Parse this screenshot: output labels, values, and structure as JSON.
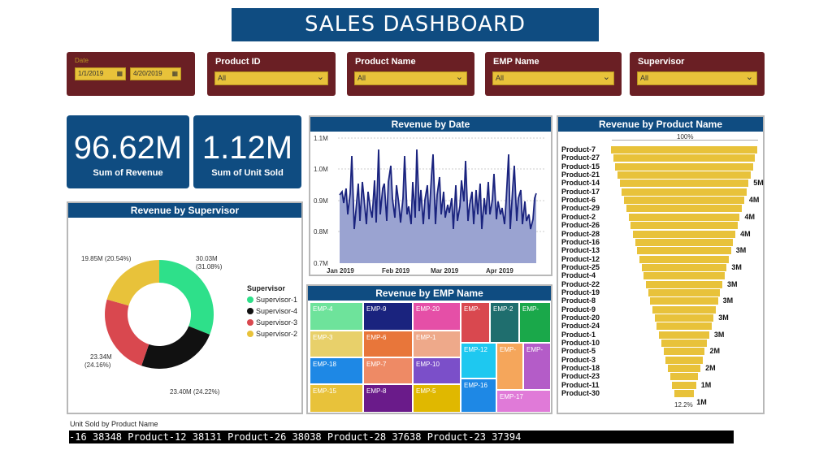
{
  "title": "SALES DASHBOARD",
  "filters": {
    "date": {
      "label": "Date",
      "start": "1/1/2019",
      "end": "4/20/2019"
    },
    "product_id": {
      "label": "Product ID",
      "value": "All"
    },
    "product_name": {
      "label": "Product Name",
      "value": "All"
    },
    "emp_name": {
      "label": "EMP Name",
      "value": "All"
    },
    "supervisor": {
      "label": "Supervisor",
      "value": "All"
    }
  },
  "kpis": {
    "revenue": {
      "value": "96.62M",
      "caption": "Sum of Revenue"
    },
    "units": {
      "value": "1.12M",
      "caption": "Sum of Unit Sold"
    }
  },
  "revenue_by_date": {
    "title": "Revenue by Date",
    "yticks": [
      "1.1M",
      "1.0M",
      "0.9M",
      "0.8M",
      "0.7M"
    ],
    "xticks": [
      "Jan 2019",
      "Feb 2019",
      "Mar 2019",
      "Apr 2019"
    ]
  },
  "revenue_by_supervisor": {
    "title": "Revenue by Supervisor",
    "legend_title": "Supervisor",
    "legend": [
      "Supervisor-1",
      "Supervisor-4",
      "Supervisor-3",
      "Supervisor-2"
    ],
    "labels": {
      "s1": [
        "30.03M",
        "(31.08%)"
      ],
      "s4": "23.40M (24.22%)",
      "s3": [
        "23.34M",
        "(24.16%)"
      ],
      "s2": "19.85M (20.54%)"
    },
    "colors": {
      "s1": "#2ee08a",
      "s4": "#111111",
      "s3": "#d9484f",
      "s2": "#e8c23a"
    }
  },
  "revenue_by_emp": {
    "title": "Revenue by EMP Name",
    "tiles": [
      "EMP-4",
      "EMP-9",
      "EMP-20",
      "EMP-",
      "EMP-2",
      "EMP-",
      "EMP-3",
      "EMP-6",
      "EMP-1",
      "EMP-12",
      "EMP-",
      "EMP-",
      "EMP-18",
      "EMP-7",
      "EMP-10",
      "EMP-16",
      "EMP-17",
      "EMP-15",
      "EMP-8",
      "EMP-5"
    ]
  },
  "revenue_by_product": {
    "title": "Revenue by Product Name",
    "top_pct": "100%",
    "bottom_pct": "12.2%",
    "products": [
      "Product-7",
      "Product-27",
      "Product-15",
      "Product-21",
      "Product-14",
      "Product-17",
      "Product-6",
      "Product-29",
      "Product-2",
      "Product-26",
      "Product-28",
      "Product-16",
      "Product-13",
      "Product-12",
      "Product-25",
      "Product-4",
      "Product-22",
      "Product-19",
      "Product-8",
      "Product-9",
      "Product-20",
      "Product-24",
      "Product-1",
      "Product-10",
      "Product-5",
      "Product-3",
      "Product-18",
      "Product-23",
      "Product-11",
      "Product-30"
    ],
    "values": [
      "5M",
      "4M",
      "4M",
      "4M",
      "3M",
      "3M",
      "3M",
      "3M",
      "3M",
      "3M",
      "2M",
      "2M",
      "1M",
      "1M"
    ]
  },
  "ticker": {
    "title": "Unit Sold by Product Name",
    "text": "-16 38348    Product-12 38131    Product-26 38038    Product-28 37638    Product-23 37394"
  }
}
